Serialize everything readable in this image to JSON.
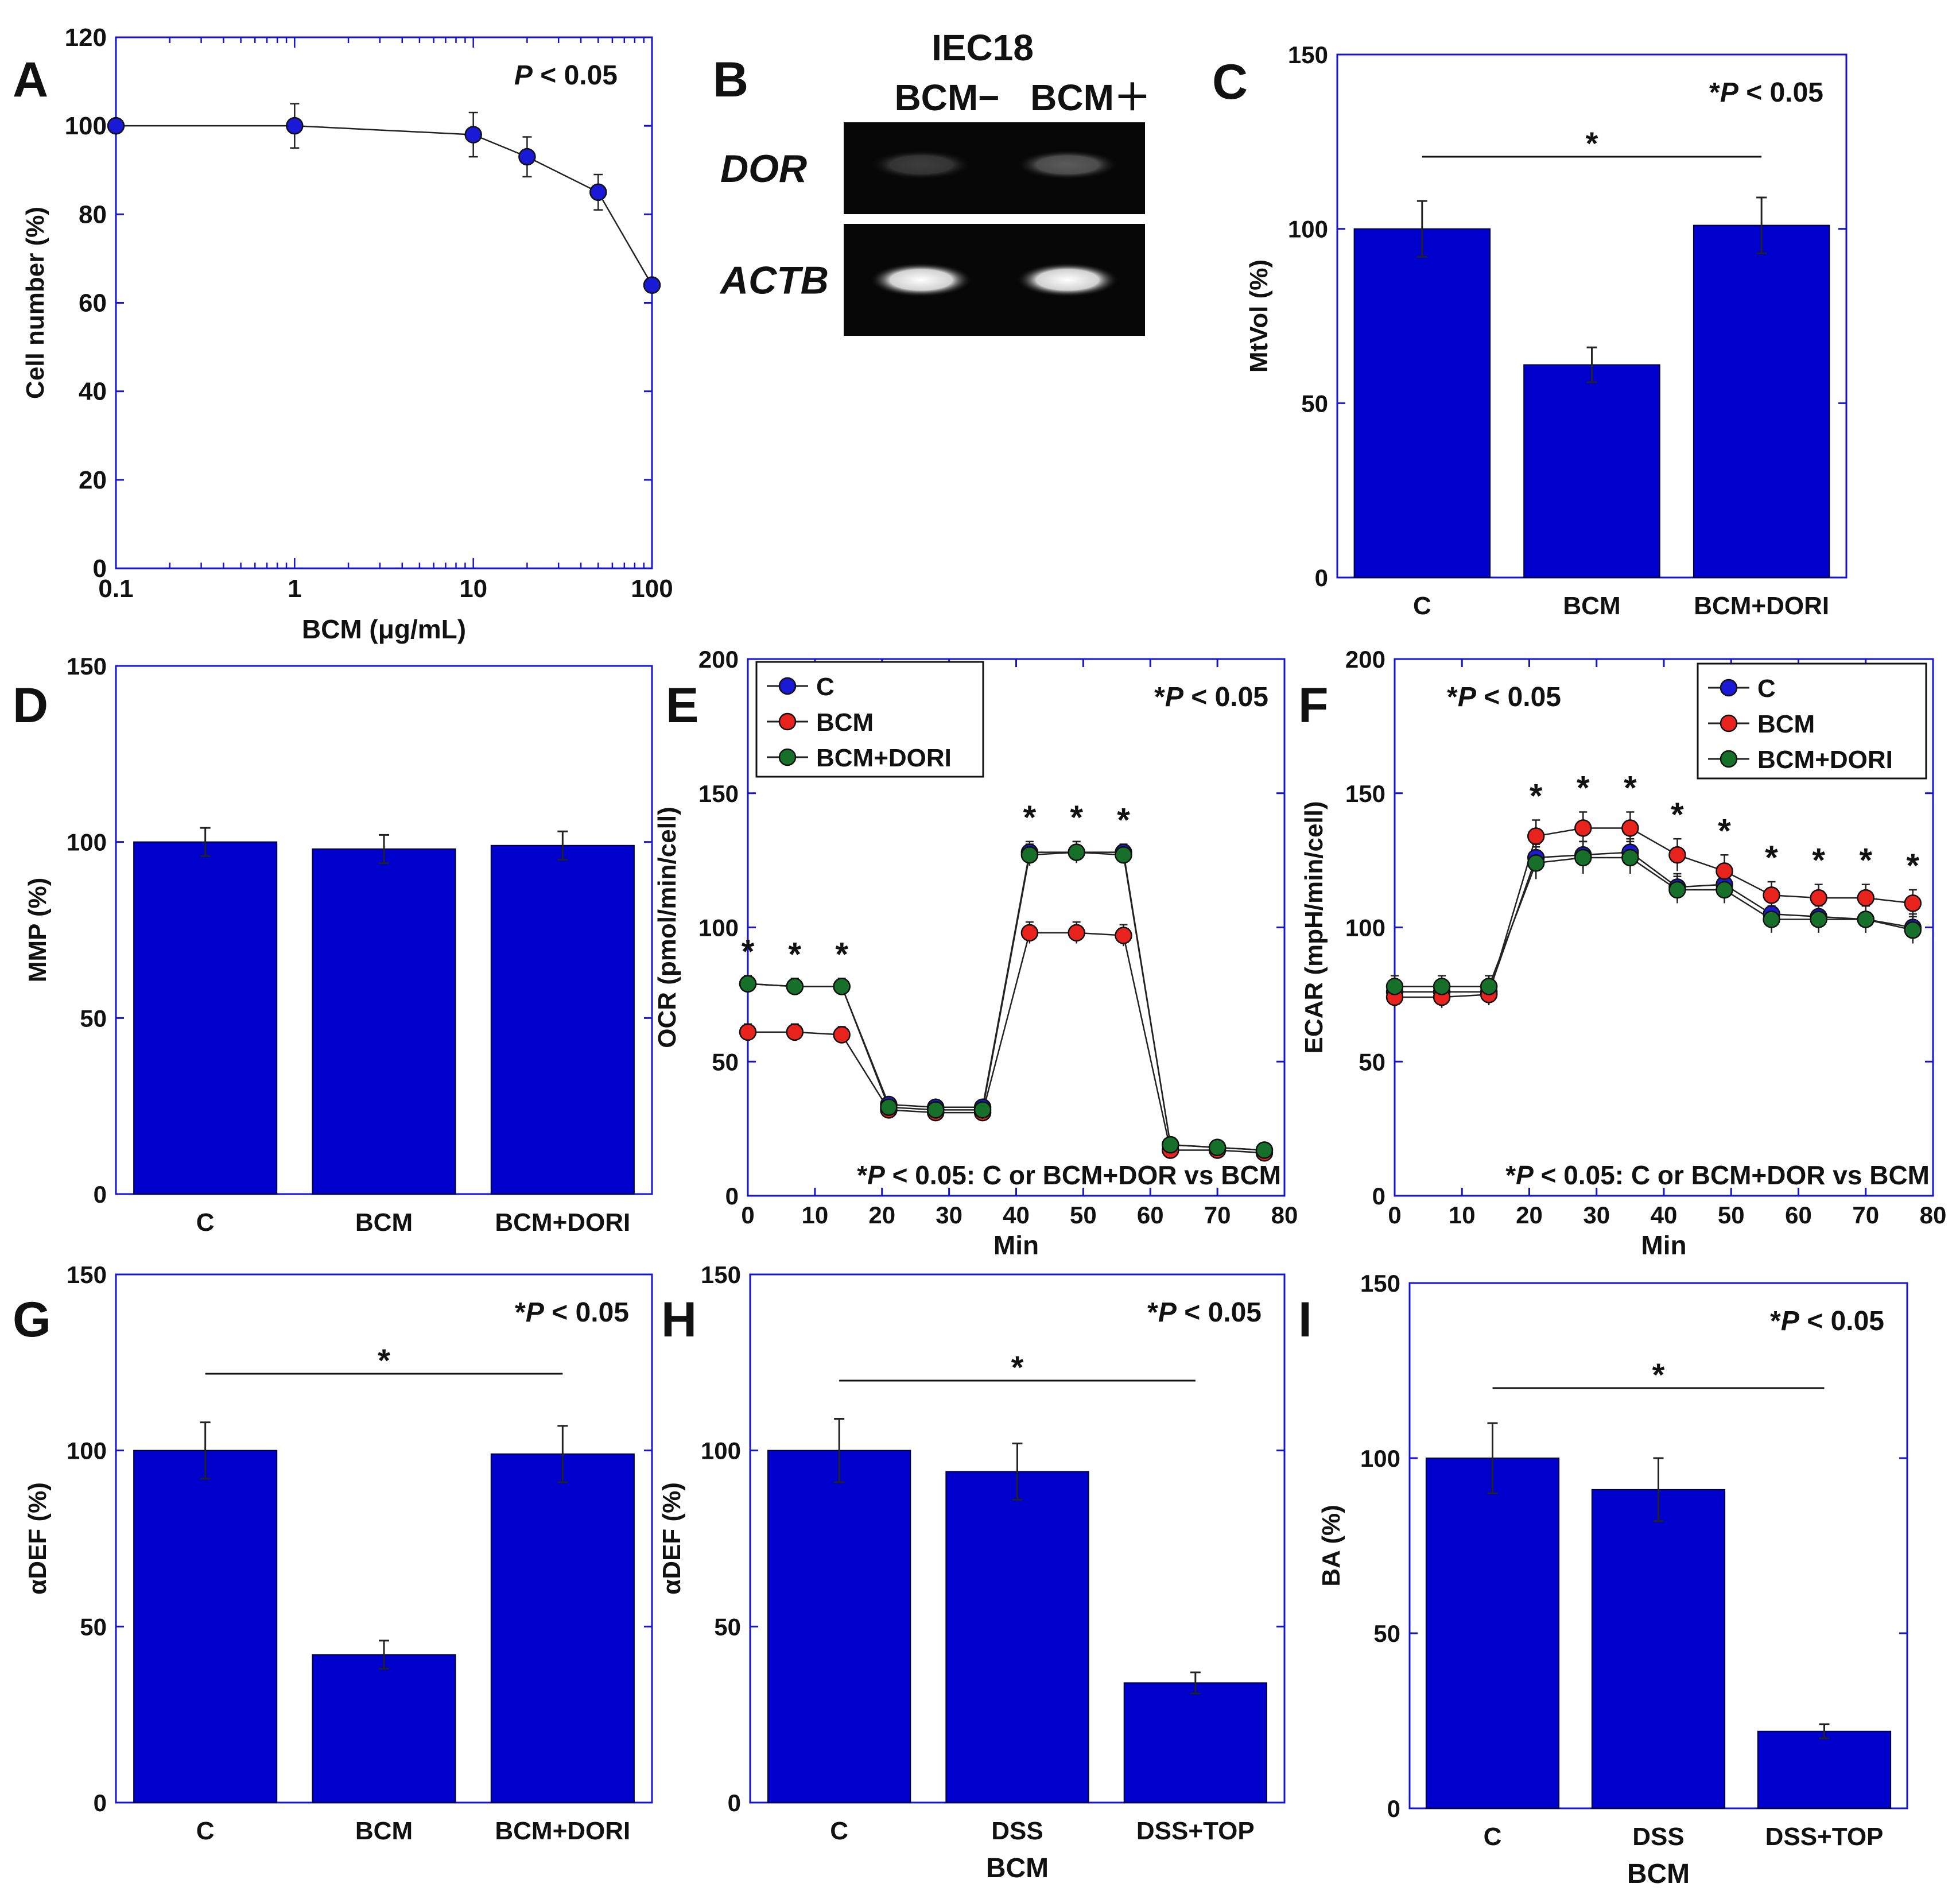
{
  "colors": {
    "bar_fill": "#0000cc",
    "axis_frame": "#1515cc",
    "series_c": "#1a1ad6",
    "series_bcm": "#e8231e",
    "series_dori": "#17702a",
    "text": "#111111"
  },
  "chart_data": [
    {
      "panel": "A",
      "type": "line",
      "xscale": "log",
      "xlabel": "BCM (μg/mL)",
      "ylabel": "Cell number (%)",
      "xlim": [
        0.1,
        100
      ],
      "ylim": [
        0,
        120
      ],
      "xticks": [
        0.1,
        1,
        10,
        100
      ],
      "xtick_labels": [
        "0.1",
        "1",
        "10",
        "100"
      ],
      "yticks": [
        0,
        20,
        40,
        60,
        80,
        100,
        120
      ],
      "annotation": {
        "italic": "P",
        "rest": " < 0.05"
      },
      "series": [
        {
          "name": "cell-number",
          "x": [
            0.1,
            1,
            10,
            20,
            50,
            100
          ],
          "y": [
            100,
            100,
            98,
            93,
            85,
            64
          ],
          "err": [
            0,
            5,
            5,
            4.5,
            4,
            0
          ]
        }
      ]
    },
    {
      "panel": "B",
      "type": "gel",
      "title": "IEC18",
      "lanes": [
        "BCM−",
        "BCM＋"
      ],
      "bands": [
        {
          "label": "DOR",
          "intensity": [
            0.22,
            0.34
          ]
        },
        {
          "label": "ACTB",
          "intensity": [
            1.0,
            1.0
          ]
        }
      ]
    },
    {
      "panel": "C",
      "type": "bar",
      "categories": [
        "C",
        "BCM",
        "BCM+DORI"
      ],
      "values": [
        100,
        61,
        101
      ],
      "errors": [
        8,
        5,
        8
      ],
      "ylabel": "MtVol (%)",
      "ylim": [
        0,
        150
      ],
      "yticks": [
        0,
        50,
        100,
        150
      ],
      "annotation": {
        "star": "*",
        "italic": "P",
        "rest": " < 0.05"
      },
      "significance": {
        "from": 0,
        "to": 2,
        "label": "*"
      }
    },
    {
      "panel": "D",
      "type": "bar",
      "categories": [
        "C",
        "BCM",
        "BCM+DORI"
      ],
      "values": [
        100,
        98,
        99
      ],
      "errors": [
        4,
        4,
        4
      ],
      "ylabel": "MMP (%)",
      "ylim": [
        0,
        150
      ],
      "yticks": [
        0,
        50,
        100,
        150
      ]
    },
    {
      "panel": "E",
      "type": "line",
      "xlabel": "Min",
      "ylabel": "OCR (pmol/min/cell)",
      "xlim": [
        0,
        80
      ],
      "ylim": [
        0,
        200
      ],
      "xticks": [
        0,
        10,
        20,
        30,
        40,
        50,
        60,
        70,
        80
      ],
      "yticks": [
        0,
        50,
        100,
        150,
        200
      ],
      "legend": [
        "C",
        "BCM",
        "BCM+DORI"
      ],
      "legend_position": "top-left",
      "annotation": {
        "star": "*",
        "italic": "P",
        "rest": " < 0.05"
      },
      "footnote": {
        "star": "*",
        "italic": "P",
        "rest": " < 0.05: C or BCM+DOR vs BCM"
      },
      "x": [
        0,
        7,
        14,
        21,
        28,
        35,
        42,
        49,
        56,
        63,
        70,
        77
      ],
      "series": [
        {
          "name": "C",
          "y": [
            79,
            78,
            78,
            34,
            33,
            33,
            128,
            128,
            128,
            19,
            18,
            17
          ],
          "err": [
            3,
            3,
            3,
            2,
            2,
            2,
            4,
            4,
            3,
            2,
            2,
            2
          ]
        },
        {
          "name": "BCM",
          "y": [
            61,
            61,
            60,
            32,
            31,
            31,
            98,
            98,
            97,
            17,
            17,
            16
          ],
          "err": [
            3,
            3,
            3,
            2,
            2,
            2,
            4,
            4,
            4,
            2,
            2,
            2
          ]
        },
        {
          "name": "BCM+DORI",
          "y": [
            79,
            78,
            78,
            33,
            32,
            32,
            127,
            128,
            127,
            19,
            18,
            17
          ],
          "err": [
            3,
            3,
            3,
            2,
            2,
            2,
            4,
            4,
            3,
            2,
            2,
            2
          ]
        }
      ],
      "star_x": [
        0,
        7,
        14,
        42,
        49,
        56
      ]
    },
    {
      "panel": "F",
      "type": "line",
      "xlabel": "Min",
      "ylabel": "ECAR (mpH/min/cell)",
      "xlim": [
        0,
        80
      ],
      "ylim": [
        0,
        200
      ],
      "xticks": [
        0,
        10,
        20,
        30,
        40,
        50,
        60,
        70,
        80
      ],
      "yticks": [
        0,
        50,
        100,
        150,
        200
      ],
      "legend": [
        "C",
        "BCM",
        "BCM+DORI"
      ],
      "legend_position": "top-right",
      "annotation": {
        "star": "*",
        "italic": "P",
        "rest": " < 0.05"
      },
      "footnote": {
        "star": "*",
        "italic": "P",
        "rest": " < 0.05: C or BCM+DOR vs BCM"
      },
      "x": [
        0,
        7,
        14,
        21,
        28,
        35,
        42,
        49,
        56,
        63,
        70,
        77
      ],
      "series": [
        {
          "name": "C",
          "y": [
            76,
            76,
            76,
            126,
            127,
            128,
            115,
            116,
            105,
            104,
            103,
            100
          ],
          "err": [
            4,
            4,
            4,
            5,
            5,
            5,
            5,
            5,
            5,
            5,
            5,
            5
          ]
        },
        {
          "name": "BCM",
          "y": [
            74,
            74,
            75,
            134,
            137,
            137,
            127,
            121,
            112,
            111,
            111,
            109
          ],
          "err": [
            4,
            4,
            4,
            6,
            6,
            6,
            6,
            6,
            5,
            5,
            5,
            5
          ]
        },
        {
          "name": "BCM+DORI",
          "y": [
            78,
            78,
            78,
            124,
            126,
            126,
            114,
            114,
            103,
            103,
            103,
            99
          ],
          "err": [
            4,
            4,
            4,
            6,
            6,
            6,
            5,
            5,
            5,
            5,
            5,
            5
          ]
        }
      ],
      "star_x": [
        21,
        28,
        35,
        42,
        49,
        56,
        63,
        70,
        77
      ]
    },
    {
      "panel": "G",
      "type": "bar",
      "categories": [
        "C",
        "BCM",
        "BCM+DORI"
      ],
      "values": [
        100,
        42,
        99
      ],
      "errors": [
        8,
        4,
        8
      ],
      "ylabel": "αDEF (%)",
      "ylim": [
        0,
        150
      ],
      "yticks": [
        0,
        50,
        100,
        150
      ],
      "annotation": {
        "star": "*",
        "italic": "P",
        "rest": " < 0.05"
      },
      "significance": {
        "from": 0,
        "to": 2,
        "label": "*"
      }
    },
    {
      "panel": "H",
      "type": "bar",
      "categories": [
        "C",
        "DSS",
        "DSS+TOP"
      ],
      "values": [
        100,
        94,
        34
      ],
      "errors": [
        9,
        8,
        3
      ],
      "ylabel": "αDEF (%)",
      "xlabel": "BCM",
      "ylim": [
        0,
        150
      ],
      "yticks": [
        0,
        50,
        100,
        150
      ],
      "annotation": {
        "star": "*",
        "italic": "P",
        "rest": " < 0.05"
      },
      "significance": {
        "from": 0,
        "to": 2,
        "label": "*"
      }
    },
    {
      "panel": "I",
      "type": "bar",
      "categories": [
        "C",
        "DSS",
        "DSS+TOP"
      ],
      "values": [
        100,
        91,
        22
      ],
      "errors": [
        10,
        9,
        2
      ],
      "ylabel": "BA (%)",
      "xlabel": "BCM",
      "ylim": [
        0,
        150
      ],
      "yticks": [
        0,
        50,
        100,
        150
      ],
      "annotation": {
        "star": "*",
        "italic": "P",
        "rest": " < 0.05"
      },
      "significance": {
        "from": 0,
        "to": 2,
        "label": "*"
      }
    }
  ]
}
